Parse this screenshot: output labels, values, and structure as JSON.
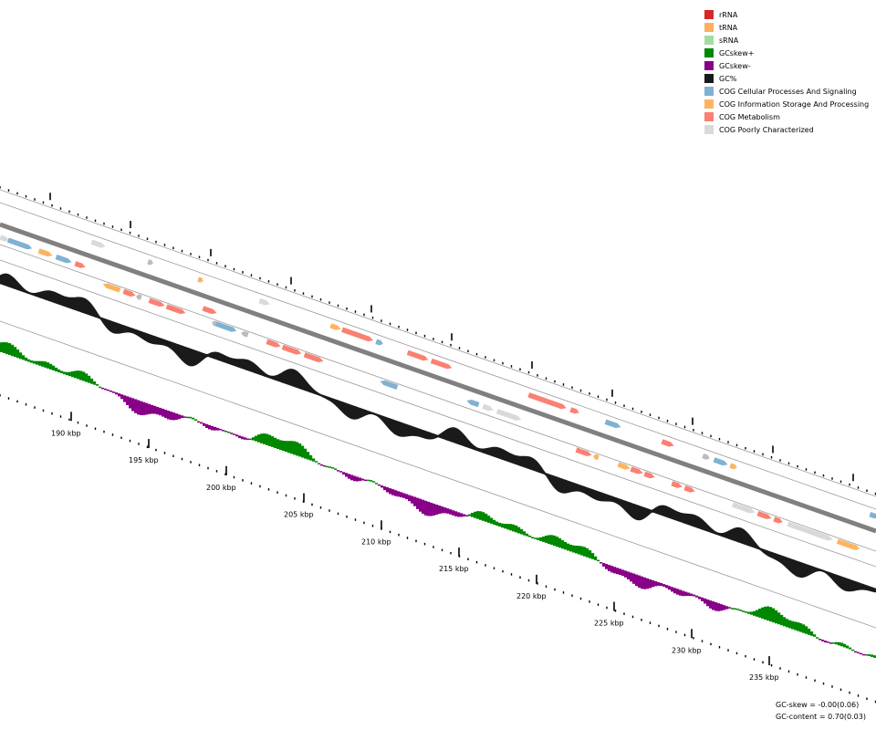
{
  "legend": [
    {
      "label": "rRNA",
      "color": "#d62728"
    },
    {
      "label": "tRNA",
      "color": "#fdae61"
    },
    {
      "label": "sRNA",
      "color": "#a6dba0"
    },
    {
      "label": "GCskew+",
      "color": "#008800"
    },
    {
      "label": "GCskew-",
      "color": "#880088"
    },
    {
      "label": "GC%",
      "color": "#1a1a1a"
    },
    {
      "label": "COG Cellular Processes And Signaling",
      "color": "#7fb1d3"
    },
    {
      "label": "COG Information Storage And Processing",
      "color": "#fdb462"
    },
    {
      "label": "COG Metabolism",
      "color": "#fb8072"
    },
    {
      "label": "COG Poorly Characterized",
      "color": "#d9d9d9"
    }
  ],
  "scale_labels": [
    "190 kbp",
    "195 kbp",
    "200 kbp",
    "205 kbp",
    "210 kbp",
    "215 kbp",
    "220 kbp",
    "225 kbp",
    "230 kbp",
    "235 kbp"
  ],
  "stats": {
    "gc_skew": "GC-skew = -0.00(0.06)",
    "gc_content": "GC-content = 0.70(0.03)"
  },
  "colors": {
    "backbone": "#808080",
    "track_line": "#999999",
    "gc": "#1a1a1a",
    "skew_pos": "#008800",
    "skew_neg": "#880088",
    "cog_cell": "#7fb1d3",
    "cog_info": "#fdb462",
    "cog_meta": "#fb8072",
    "cog_poor": "#d9d9d9",
    "gray_feat": "#bbbbbb"
  }
}
